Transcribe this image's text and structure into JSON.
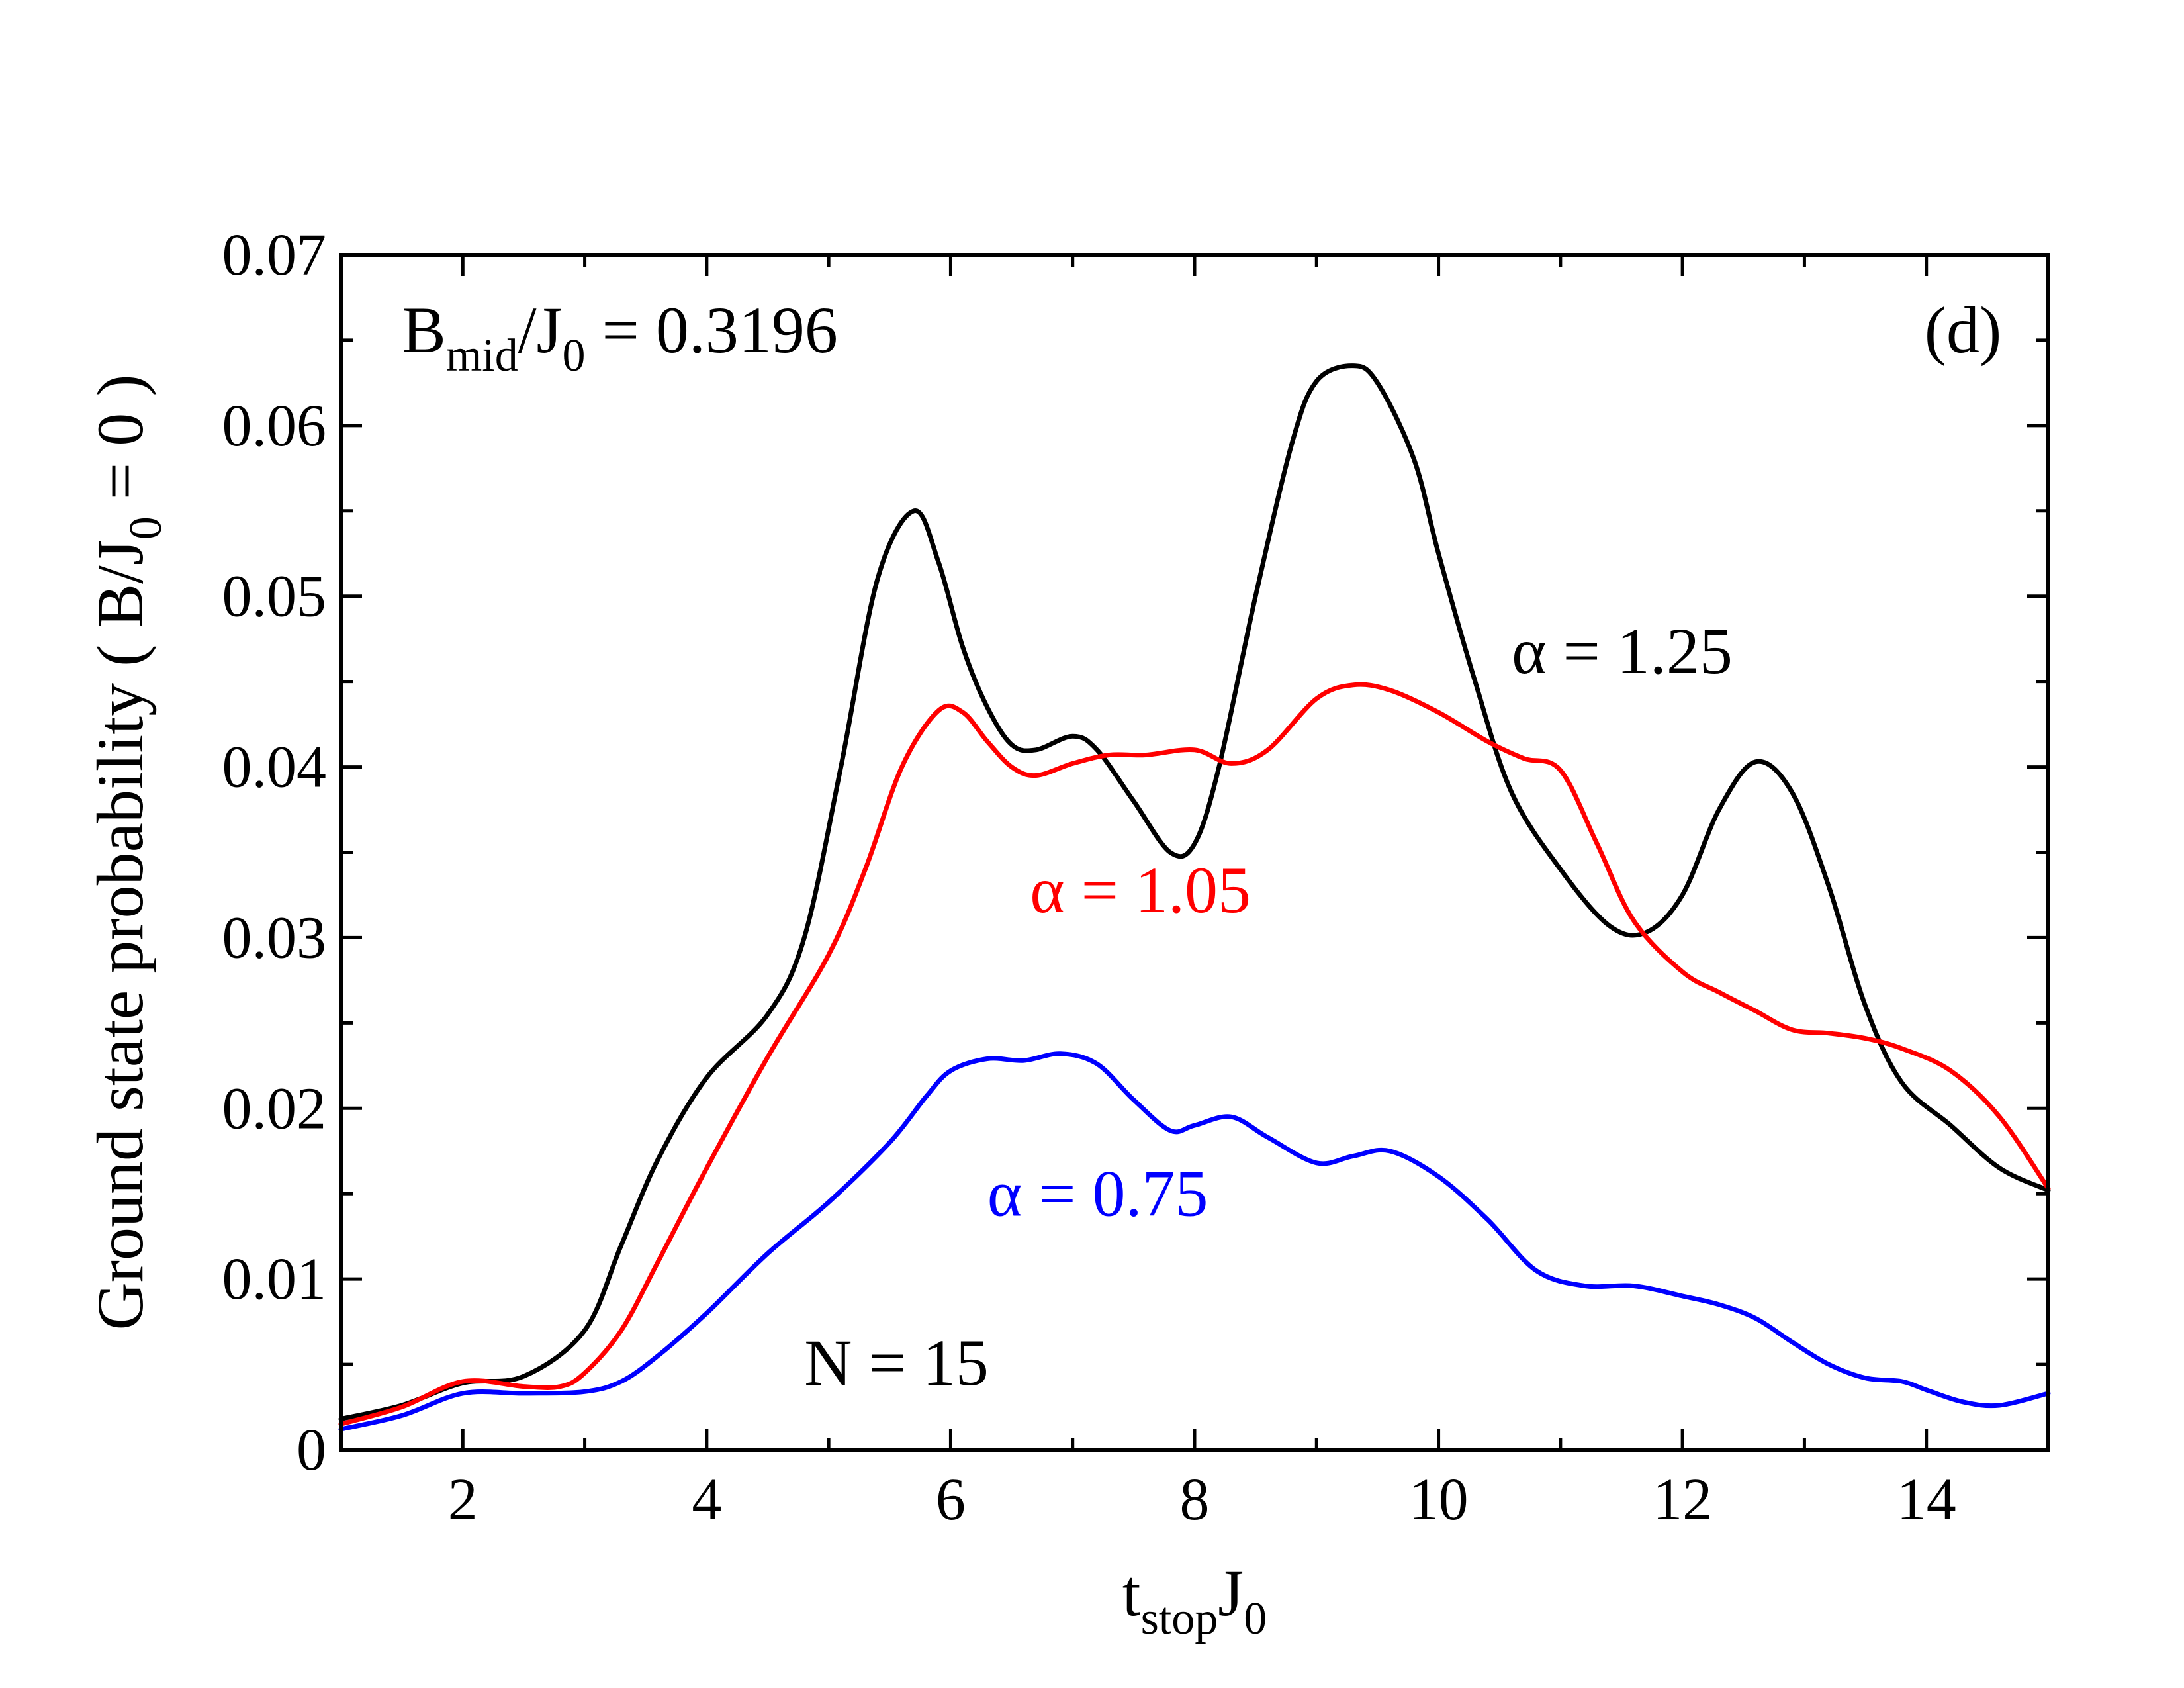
{
  "chart_data": {
    "type": "line",
    "panel_label": "(d)",
    "xlabel": {
      "main": "t",
      "sub": "stop",
      "main2": "J",
      "sub2": "0"
    },
    "ylabel": {
      "part1": "Ground state probability ( B/J",
      "sub": "0",
      "part2": " = 0 )"
    },
    "xlim": [
      1,
      15
    ],
    "ylim": [
      0,
      0.07
    ],
    "x_ticks": [
      2,
      4,
      6,
      8,
      10,
      12,
      14
    ],
    "x_tick_labels": [
      "2",
      "4",
      "6",
      "8",
      "10",
      "12",
      "14"
    ],
    "y_ticks": [
      0,
      0.01,
      0.02,
      0.03,
      0.04,
      0.05,
      0.06,
      0.07
    ],
    "y_tick_labels": [
      "0",
      "0.01",
      "0.02",
      "0.03",
      "0.04",
      "0.05",
      "0.06",
      "0.07"
    ],
    "annotations": {
      "bmid": {
        "B": "B",
        "sub": "mid",
        "rest1": "/J",
        "sub2": "0",
        "rest2": " = 0.3196"
      },
      "n": "N = 15"
    },
    "series": [
      {
        "name": "α = 1.25",
        "label": "α = 1.25",
        "color": "#000000",
        "x": [
          1.0,
          1.5,
          2.0,
          2.5,
          3.0,
          3.3,
          3.6,
          4.0,
          4.5,
          4.8,
          5.1,
          5.4,
          5.7,
          5.9,
          6.1,
          6.3,
          6.5,
          6.7,
          7.0,
          7.2,
          7.5,
          7.8,
          8.0,
          8.2,
          8.5,
          8.8,
          9.0,
          9.3,
          9.5,
          9.8,
          10.0,
          10.3,
          10.6,
          11.0,
          11.4,
          11.7,
          12.0,
          12.3,
          12.6,
          12.9,
          13.2,
          13.5,
          13.8,
          14.2,
          14.6,
          15.0
        ],
        "y": [
          0.0018,
          0.0026,
          0.0039,
          0.0043,
          0.007,
          0.012,
          0.017,
          0.0218,
          0.0255,
          0.03,
          0.04,
          0.051,
          0.055,
          0.052,
          0.047,
          0.0435,
          0.0413,
          0.041,
          0.0418,
          0.041,
          0.038,
          0.035,
          0.0355,
          0.04,
          0.05,
          0.059,
          0.0626,
          0.0635,
          0.0625,
          0.058,
          0.0525,
          0.045,
          0.0385,
          0.034,
          0.0307,
          0.0303,
          0.0325,
          0.0375,
          0.0403,
          0.0385,
          0.033,
          0.026,
          0.0215,
          0.019,
          0.0165,
          0.0152
        ]
      },
      {
        "name": "α = 1.05",
        "label": "α = 1.05",
        "color": "#ff0000",
        "x": [
          1.0,
          1.5,
          2.0,
          2.5,
          2.8,
          3.0,
          3.3,
          3.6,
          4.0,
          4.5,
          5.0,
          5.3,
          5.6,
          5.9,
          6.1,
          6.3,
          6.5,
          6.7,
          7.0,
          7.3,
          7.6,
          8.0,
          8.3,
          8.6,
          9.0,
          9.3,
          9.6,
          10.0,
          10.4,
          10.7,
          11.0,
          11.3,
          11.6,
          12.0,
          12.3,
          12.6,
          12.9,
          13.2,
          13.5,
          13.8,
          14.2,
          14.6,
          15.0
        ],
        "y": [
          0.0015,
          0.0025,
          0.004,
          0.0037,
          0.0037,
          0.0045,
          0.007,
          0.011,
          0.0165,
          0.023,
          0.029,
          0.034,
          0.04,
          0.0433,
          0.0432,
          0.0415,
          0.04,
          0.0395,
          0.0402,
          0.0407,
          0.0407,
          0.041,
          0.0402,
          0.041,
          0.044,
          0.0448,
          0.0445,
          0.0432,
          0.0415,
          0.0405,
          0.0398,
          0.0355,
          0.031,
          0.028,
          0.0268,
          0.0257,
          0.0246,
          0.0244,
          0.0241,
          0.0235,
          0.0222,
          0.0195,
          0.0153
        ]
      },
      {
        "name": "α = 0.75",
        "label": "α = 0.75",
        "color": "#0000ff",
        "x": [
          1.0,
          1.5,
          2.0,
          2.5,
          3.0,
          3.3,
          3.6,
          4.0,
          4.5,
          5.0,
          5.5,
          5.8,
          6.0,
          6.3,
          6.6,
          6.9,
          7.2,
          7.5,
          7.8,
          8.0,
          8.3,
          8.6,
          9.0,
          9.3,
          9.6,
          10.0,
          10.4,
          10.8,
          11.2,
          11.6,
          12.0,
          12.3,
          12.6,
          12.9,
          13.2,
          13.5,
          13.8,
          14.0,
          14.3,
          14.6,
          15.0
        ],
        "y": [
          0.0012,
          0.002,
          0.0033,
          0.0033,
          0.0034,
          0.004,
          0.0055,
          0.008,
          0.0115,
          0.0145,
          0.018,
          0.0207,
          0.0222,
          0.0229,
          0.0228,
          0.0232,
          0.0226,
          0.0205,
          0.0187,
          0.019,
          0.0195,
          0.0183,
          0.0168,
          0.0172,
          0.0175,
          0.016,
          0.0135,
          0.0105,
          0.0096,
          0.0096,
          0.009,
          0.0085,
          0.0077,
          0.0063,
          0.005,
          0.0042,
          0.004,
          0.0035,
          0.0028,
          0.0026,
          0.0033
        ]
      }
    ],
    "label_positions_data": [
      {
        "series": 0,
        "x": 10.6,
        "y": 0.0455
      },
      {
        "series": 1,
        "x": 6.65,
        "y": 0.0315
      },
      {
        "series": 2,
        "x": 6.3,
        "y": 0.0137
      }
    ],
    "n_position_data": {
      "x": 4.8,
      "y": 0.0038
    },
    "bmid_position_data": {
      "x": 1.5,
      "y": 0.0643
    },
    "panel_label_position_data": {
      "x": 14.3,
      "y": 0.0643
    }
  }
}
